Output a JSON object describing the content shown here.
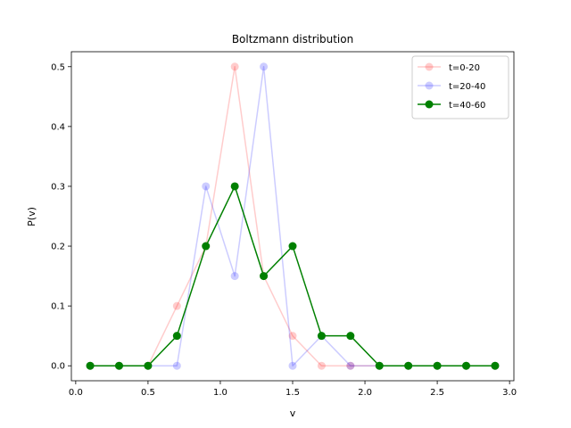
{
  "chart_data": {
    "type": "line",
    "title": "Boltzmann distribution",
    "xlabel": "v",
    "ylabel": "P(v)",
    "xlim": [
      -0.03,
      3.03
    ],
    "ylim": [
      -0.025,
      0.525
    ],
    "xticks": [
      0.0,
      0.5,
      1.0,
      1.5,
      2.0,
      2.5,
      3.0
    ],
    "xtick_labels": [
      "0.0",
      "0.5",
      "1.0",
      "1.5",
      "2.0",
      "2.5",
      "3.0"
    ],
    "yticks": [
      0.0,
      0.1,
      0.2,
      0.3,
      0.4,
      0.5
    ],
    "ytick_labels": [
      "0.0",
      "0.1",
      "0.2",
      "0.3",
      "0.4",
      "0.5"
    ],
    "grid": false,
    "legend_position": "top-right",
    "x": [
      0.1,
      0.3,
      0.5,
      0.7,
      0.9,
      1.1,
      1.3,
      1.5,
      1.7,
      1.9,
      2.1,
      2.3,
      2.5,
      2.7,
      2.9
    ],
    "series": [
      {
        "name": "t=0-20",
        "color": "#ff0000",
        "opacity": 0.2,
        "values": [
          0,
          0,
          0,
          0.1,
          0.2,
          0.5,
          0.15,
          0.05,
          0,
          0,
          0,
          0,
          0,
          0,
          0
        ]
      },
      {
        "name": "t=20-40",
        "color": "#0000ff",
        "opacity": 0.2,
        "values": [
          0,
          0,
          0,
          0,
          0.3,
          0.15,
          0.5,
          0,
          0.05,
          0,
          0,
          0,
          0,
          0,
          0
        ]
      },
      {
        "name": "t=40-60",
        "color": "#008000",
        "opacity": 1.0,
        "values": [
          0,
          0,
          0,
          0.05,
          0.2,
          0.3,
          0.15,
          0.2,
          0.05,
          0.05,
          0,
          0,
          0,
          0,
          0
        ]
      }
    ]
  }
}
